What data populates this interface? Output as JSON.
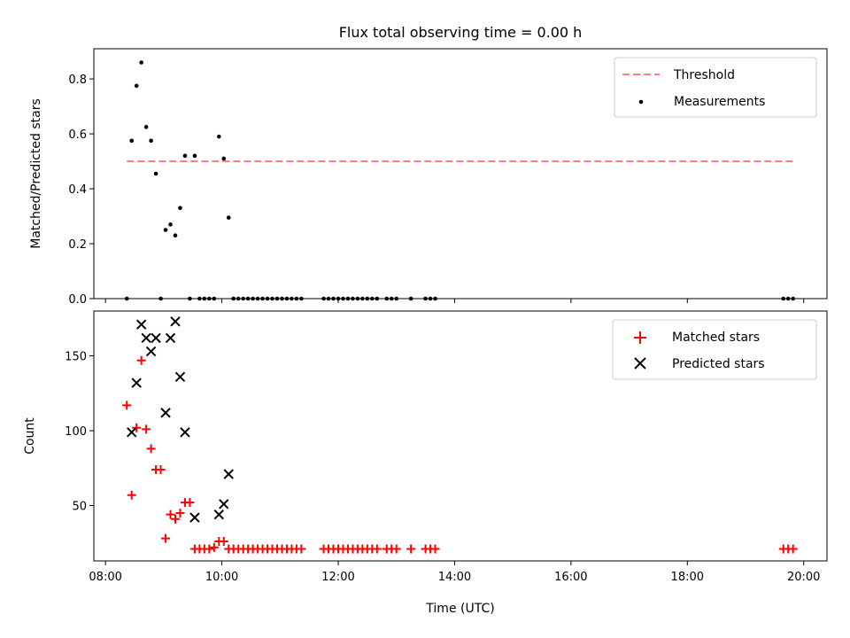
{
  "chart_data": {
    "title": "Flux total observing time = 0.00 h",
    "xlabel": "Time (UTC)",
    "x_ticks": [
      "08:00",
      "10:00",
      "12:00",
      "14:00",
      "16:00",
      "18:00",
      "20:00"
    ],
    "xlim": [
      "07:48",
      "20:24"
    ],
    "panels": [
      {
        "type": "scatter",
        "ylabel": "Matched/Predicted stars",
        "ylim": [
          0,
          0.91
        ],
        "y_ticks": [
          0.0,
          0.2,
          0.4,
          0.6,
          0.8
        ],
        "y_tick_labels": [
          "0.0",
          "0.2",
          "0.4",
          "0.6",
          "0.8"
        ],
        "legend_position": "top-right",
        "series": [
          {
            "name": "Threshold",
            "kind": "dashed-line",
            "color": "#ff7f7f",
            "points": [
              [
                "08:22",
                0.5
              ],
              [
                "19:50",
                0.5
              ]
            ]
          },
          {
            "name": "Measurements",
            "kind": "dot",
            "color": "#000000",
            "points": [
              [
                "08:22",
                0.0
              ],
              [
                "08:27",
                0.575
              ],
              [
                "08:32",
                0.775
              ],
              [
                "08:37",
                0.86
              ],
              [
                "08:42",
                0.625
              ],
              [
                "08:47",
                0.575
              ],
              [
                "08:52",
                0.455
              ],
              [
                "08:57",
                0.0
              ],
              [
                "09:02",
                0.25
              ],
              [
                "09:07",
                0.27
              ],
              [
                "09:12",
                0.23
              ],
              [
                "09:17",
                0.33
              ],
              [
                "09:22",
                0.52
              ],
              [
                "09:27",
                0.0
              ],
              [
                "09:32",
                0.52
              ],
              [
                "09:37",
                0.0
              ],
              [
                "09:42",
                0.0
              ],
              [
                "09:47",
                0.0
              ],
              [
                "09:52",
                0.0
              ],
              [
                "09:57",
                0.59
              ],
              [
                "10:02",
                0.51
              ],
              [
                "10:07",
                0.295
              ],
              [
                "10:12",
                0.0
              ],
              [
                "10:17",
                0.0
              ],
              [
                "10:22",
                0.0
              ],
              [
                "10:27",
                0.0
              ],
              [
                "10:32",
                0.0
              ],
              [
                "10:37",
                0.0
              ],
              [
                "10:42",
                0.0
              ],
              [
                "10:47",
                0.0
              ],
              [
                "10:52",
                0.0
              ],
              [
                "10:57",
                0.0
              ],
              [
                "11:02",
                0.0
              ],
              [
                "11:07",
                0.0
              ],
              [
                "11:12",
                0.0
              ],
              [
                "11:17",
                0.0
              ],
              [
                "11:22",
                0.0
              ],
              [
                "11:45",
                0.0
              ],
              [
                "11:50",
                0.0
              ],
              [
                "11:55",
                0.0
              ],
              [
                "12:00",
                0.0
              ],
              [
                "12:05",
                0.0
              ],
              [
                "12:10",
                0.0
              ],
              [
                "12:15",
                0.0
              ],
              [
                "12:20",
                0.0
              ],
              [
                "12:25",
                0.0
              ],
              [
                "12:30",
                0.0
              ],
              [
                "12:35",
                0.0
              ],
              [
                "12:40",
                0.0
              ],
              [
                "12:50",
                0.0
              ],
              [
                "12:55",
                0.0
              ],
              [
                "13:00",
                0.0
              ],
              [
                "13:15",
                0.0
              ],
              [
                "13:30",
                0.0
              ],
              [
                "13:35",
                0.0
              ],
              [
                "13:40",
                0.0
              ],
              [
                "19:39",
                0.0
              ],
              [
                "19:44",
                0.0
              ],
              [
                "19:49",
                0.0
              ]
            ]
          }
        ]
      },
      {
        "type": "scatter",
        "ylabel": "Count",
        "ylim": [
          13,
          180
        ],
        "y_ticks": [
          50,
          100,
          150
        ],
        "y_tick_labels": [
          "50",
          "100",
          "150"
        ],
        "legend_position": "top-right",
        "series": [
          {
            "name": "Matched stars",
            "kind": "plus",
            "color": "#ff0000",
            "points": [
              [
                "08:22",
                117
              ],
              [
                "08:27",
                57
              ],
              [
                "08:32",
                102
              ],
              [
                "08:37",
                147
              ],
              [
                "08:42",
                101
              ],
              [
                "08:47",
                88
              ],
              [
                "08:52",
                74
              ],
              [
                "08:57",
                74
              ],
              [
                "09:02",
                28
              ],
              [
                "09:07",
                44
              ],
              [
                "09:12",
                41
              ],
              [
                "09:17",
                45
              ],
              [
                "09:22",
                52
              ],
              [
                "09:27",
                52
              ],
              [
                "09:32",
                21
              ],
              [
                "09:37",
                21
              ],
              [
                "09:42",
                21
              ],
              [
                "09:47",
                21
              ],
              [
                "09:52",
                22
              ],
              [
                "09:57",
                26
              ],
              [
                "10:02",
                26
              ],
              [
                "10:07",
                21
              ],
              [
                "10:12",
                21
              ],
              [
                "10:17",
                21
              ],
              [
                "10:22",
                21
              ],
              [
                "10:27",
                21
              ],
              [
                "10:32",
                21
              ],
              [
                "10:37",
                21
              ],
              [
                "10:42",
                21
              ],
              [
                "10:47",
                21
              ],
              [
                "10:52",
                21
              ],
              [
                "10:57",
                21
              ],
              [
                "11:02",
                21
              ],
              [
                "11:07",
                21
              ],
              [
                "11:12",
                21
              ],
              [
                "11:17",
                21
              ],
              [
                "11:22",
                21
              ],
              [
                "11:45",
                21
              ],
              [
                "11:50",
                21
              ],
              [
                "11:55",
                21
              ],
              [
                "12:00",
                21
              ],
              [
                "12:05",
                21
              ],
              [
                "12:10",
                21
              ],
              [
                "12:15",
                21
              ],
              [
                "12:20",
                21
              ],
              [
                "12:25",
                21
              ],
              [
                "12:30",
                21
              ],
              [
                "12:35",
                21
              ],
              [
                "12:40",
                21
              ],
              [
                "12:50",
                21
              ],
              [
                "12:55",
                21
              ],
              [
                "13:00",
                21
              ],
              [
                "13:15",
                21
              ],
              [
                "13:30",
                21
              ],
              [
                "13:35",
                21
              ],
              [
                "13:40",
                21
              ],
              [
                "19:39",
                21
              ],
              [
                "19:44",
                21
              ],
              [
                "19:49",
                21
              ]
            ]
          },
          {
            "name": "Predicted stars",
            "kind": "cross",
            "color": "#000000",
            "points": [
              [
                "08:27",
                99
              ],
              [
                "08:32",
                132
              ],
              [
                "08:37",
                171
              ],
              [
                "08:42",
                162
              ],
              [
                "08:47",
                153
              ],
              [
                "08:52",
                162
              ],
              [
                "09:02",
                112
              ],
              [
                "09:07",
                162
              ],
              [
                "09:12",
                173
              ],
              [
                "09:17",
                136
              ],
              [
                "09:22",
                99
              ],
              [
                "09:32",
                42
              ],
              [
                "09:57",
                44
              ],
              [
                "10:02",
                51
              ],
              [
                "10:07",
                71
              ]
            ]
          }
        ]
      }
    ]
  }
}
